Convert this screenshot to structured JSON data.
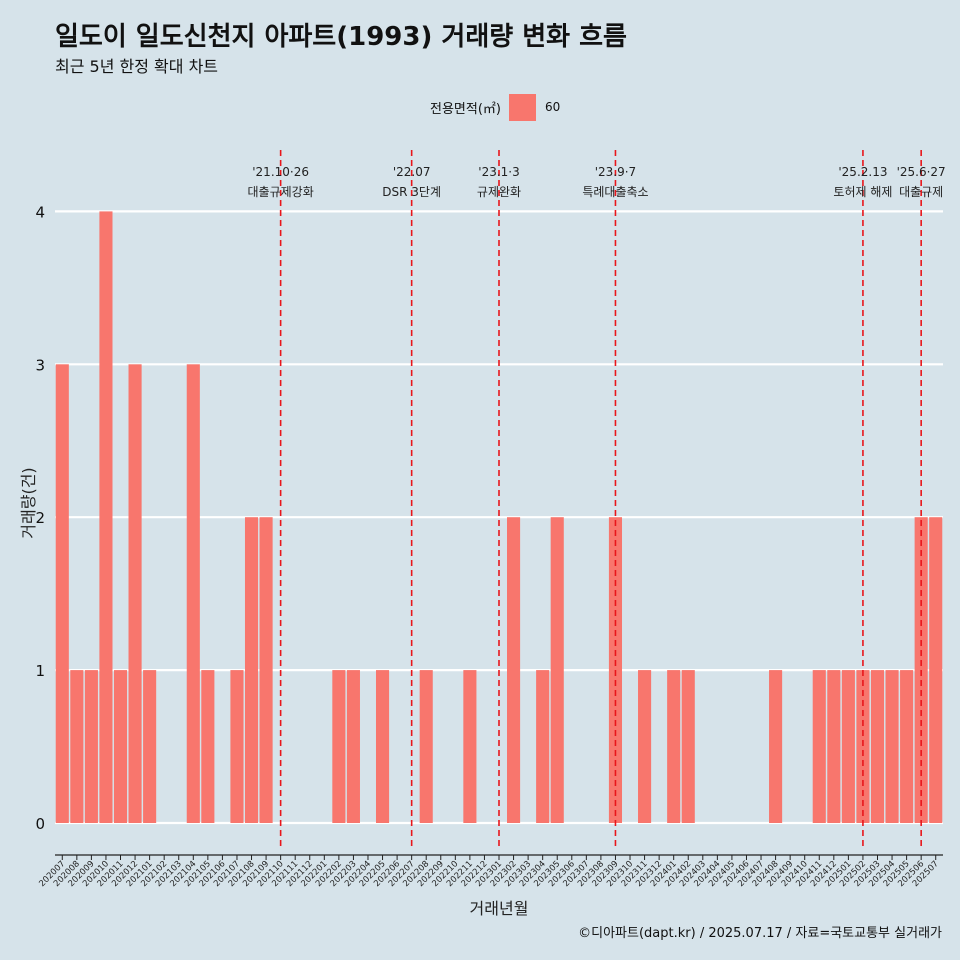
{
  "title": "일도이 일도신천지 아파트(1993) 거래량 변화 흐름",
  "subtitle": "최근 5년 한정 확대 차트",
  "legend": {
    "title": "전용면적(㎡)",
    "label": "60"
  },
  "caption": "©디아파트(dapt.kr) / 2025.07.17 / 자료=국토교통부 실거래가",
  "chart_data": {
    "type": "bar",
    "title": "일도이 일도신천지 아파트(1993) 거래량 변화 흐름",
    "subtitle": "최근 5년 한정 확대 차트",
    "xlabel": "거래년월",
    "ylabel": "거래량(건)",
    "ylim": [
      0,
      4
    ],
    "yticks": [
      0,
      1,
      2,
      3,
      4
    ],
    "grid": "horizontal",
    "legend_position": "top",
    "bar_color": "#f8766d",
    "vline_color": "#e8161b",
    "categories": [
      "202007",
      "202008",
      "202009",
      "202010",
      "202011",
      "202012",
      "202101",
      "202102",
      "202103",
      "202104",
      "202105",
      "202106",
      "202107",
      "202108",
      "202109",
      "202110",
      "202111",
      "202112",
      "202201",
      "202202",
      "202203",
      "202204",
      "202205",
      "202206",
      "202207",
      "202208",
      "202209",
      "202210",
      "202211",
      "202212",
      "202301",
      "202302",
      "202303",
      "202304",
      "202305",
      "202306",
      "202307",
      "202308",
      "202309",
      "202310",
      "202311",
      "202312",
      "202401",
      "202402",
      "202403",
      "202404",
      "202405",
      "202406",
      "202407",
      "202408",
      "202409",
      "202410",
      "202411",
      "202412",
      "202501",
      "202502",
      "202503",
      "202504",
      "202505",
      "202506",
      "202507"
    ],
    "series": [
      {
        "name": "60",
        "values": [
          3,
          1,
          1,
          4,
          1,
          3,
          1,
          0,
          0,
          3,
          1,
          0,
          1,
          2,
          2,
          0,
          0,
          0,
          0,
          1,
          1,
          0,
          1,
          0,
          0,
          1,
          0,
          0,
          1,
          0,
          0,
          2,
          0,
          1,
          2,
          0,
          0,
          0,
          2,
          0,
          1,
          0,
          1,
          1,
          0,
          0,
          0,
          0,
          0,
          1,
          0,
          0,
          1,
          1,
          1,
          1,
          1,
          1,
          1,
          2,
          2
        ]
      }
    ],
    "annotations": [
      {
        "category": "202110",
        "date": "'21.10·26",
        "label": "대출규제강화"
      },
      {
        "category": "202207",
        "date": "'22.07",
        "label": "DSR 3단계"
      },
      {
        "category": "202301",
        "date": "'23.1·3",
        "label": "규제완화"
      },
      {
        "category": "202309",
        "date": "'23.9·7",
        "label": "특례대출축소"
      },
      {
        "category": "202502",
        "date": "'25.2.13",
        "label": "토허제 해제"
      },
      {
        "category": "202506",
        "date": "'25.6·27",
        "label": "대출규제"
      }
    ]
  }
}
